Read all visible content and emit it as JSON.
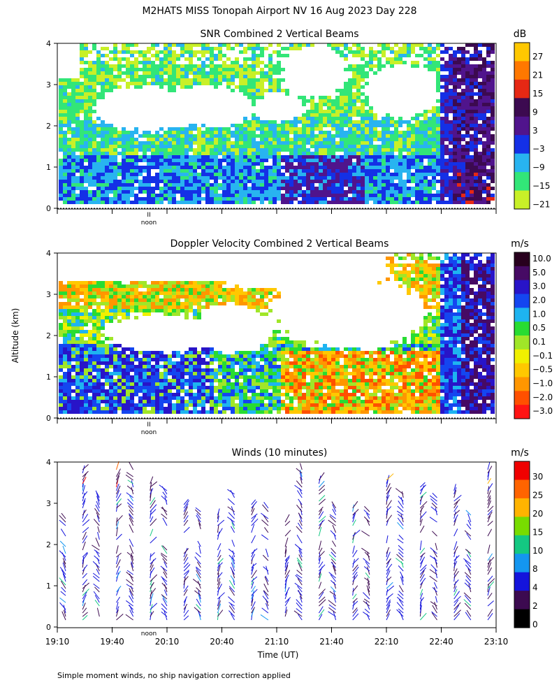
{
  "figure_title": "M2HATS MISS Tonopah Airport NV  16 Aug 2023 Day 228",
  "y_axis_label": "Altitude (km)",
  "x_axis_label": "Time (UT)",
  "footnote": "Simple moment winds, no ship navigation correction applied",
  "noon_marker": "noon",
  "chart_data": [
    {
      "type": "heatmap",
      "title": "SNR Combined 2 Vertical Beams",
      "ylabel": "Altitude (km)",
      "ylim": [
        0,
        4
      ],
      "yticks": [
        "0",
        "1",
        "2",
        "3",
        "4"
      ],
      "xlim": [
        "19:10",
        "23:10"
      ],
      "colorbar": {
        "unit": "dB",
        "labels": [
          "27",
          "21",
          "15",
          "9",
          "3",
          "−3",
          "−9",
          "−15",
          "−21"
        ],
        "colors": [
          "#ffc800",
          "#ff7800",
          "#e62814",
          "#3c0a50",
          "#50148c",
          "#1430e6",
          "#28b4f0",
          "#32e678",
          "#c8f028"
        ]
      }
    },
    {
      "type": "heatmap",
      "title": "Doppler Velocity Combined 2 Vertical Beams",
      "ylabel": "Altitude (km)",
      "ylim": [
        0,
        4
      ],
      "yticks": [
        "0",
        "1",
        "2",
        "3",
        "4"
      ],
      "xlim": [
        "19:10",
        "23:10"
      ],
      "colorbar": {
        "unit": "m/s",
        "labels": [
          "10.0",
          "5.0",
          "3.0",
          "2.0",
          "1.0",
          "0.5",
          "0.1",
          "−0.1",
          "−0.5",
          "−1.0",
          "−2.0",
          "−3.0"
        ],
        "colors": [
          "#28001e",
          "#460a64",
          "#2814c8",
          "#1446f0",
          "#1eb4f0",
          "#28dc32",
          "#a0e628",
          "#f0f000",
          "#ffc800",
          "#ff9600",
          "#ff5000",
          "#ff1414"
        ]
      }
    },
    {
      "type": "scatter",
      "title": "Winds (10 minutes)",
      "ylabel": "Altitude (km)",
      "xlabel": "Time (UT)",
      "ylim": [
        0,
        4
      ],
      "yticks": [
        "0",
        "1",
        "2",
        "3",
        "4"
      ],
      "xticks": [
        "19:10",
        "19:40",
        "20:10",
        "20:40",
        "21:10",
        "21:40",
        "22:10",
        "22:40",
        "23:10"
      ],
      "colorbar": {
        "unit": "m/s",
        "labels": [
          "30",
          "25",
          "20",
          "15",
          "10",
          "8",
          "4",
          "2",
          "0"
        ],
        "colors": [
          "#f00000",
          "#ff6400",
          "#ffb400",
          "#78dc00",
          "#14c882",
          "#1496f0",
          "#1414dc",
          "#3c0a50",
          "#000000"
        ]
      }
    }
  ]
}
